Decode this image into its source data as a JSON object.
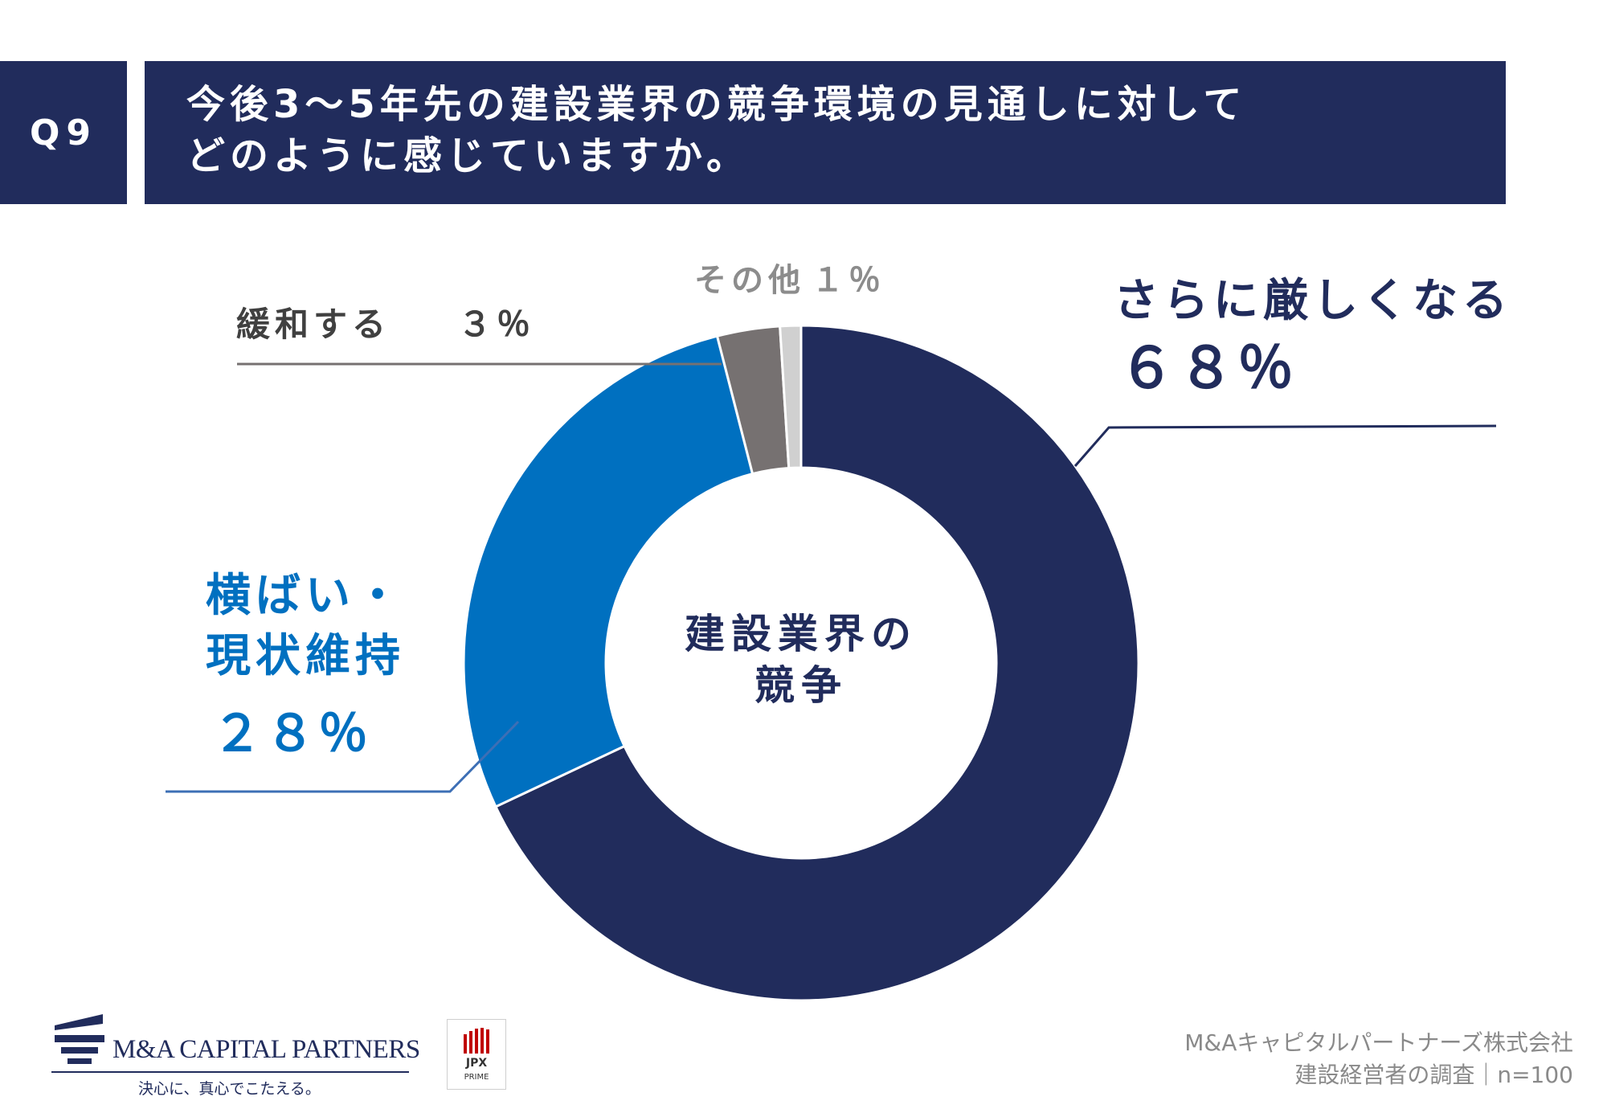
{
  "question": {
    "number": "Q9",
    "title_line1": "今後3〜5年先の建設業界の競争環境の見通しに対して",
    "title_line2": "どのように感じていますか。"
  },
  "chart_data": {
    "type": "pie",
    "style": "donut",
    "center_label_line1": "建設業界の",
    "center_label_line2": "競争",
    "slices": [
      {
        "label": "さらに厳しくなる",
        "value": 68,
        "value_label": "６８％",
        "color": "#212c5c"
      },
      {
        "label_line1": "横ばい・",
        "label_line2": "現状維持",
        "value": 28,
        "value_label": "２８％",
        "color": "#0070c0"
      },
      {
        "label": "緩和する",
        "value": 3,
        "value_label": "３％",
        "color": "#767171"
      },
      {
        "label": "その他",
        "value": 1,
        "value_label": "１％",
        "color": "#d0d0d0"
      }
    ],
    "start_angle_deg": 0,
    "direction": "clockwise"
  },
  "footer": {
    "company_name": "M&A CAPITAL PARTNERS",
    "slogan": "決心に、真心でこたえる。",
    "jpx_label": "JPX",
    "jpx_sub": "PRIME",
    "source_line1": "M&Aキャピタルパートナーズ株式会社",
    "source_line2": "建設経営者の調査｜n=100"
  }
}
